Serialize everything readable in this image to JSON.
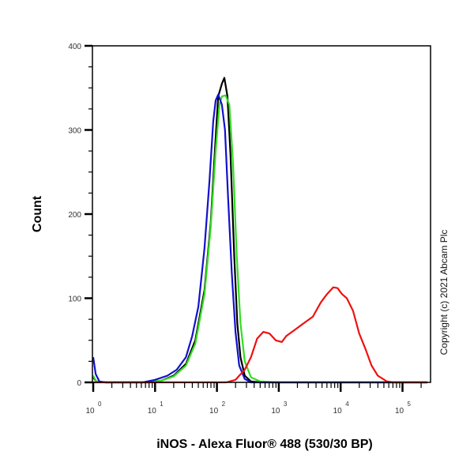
{
  "chart_data": {
    "type": "line",
    "title": "",
    "xlabel": "iNOS - Alexa Fluor® 488 (530/30 BP)",
    "ylabel": "Count",
    "x_scale": "log",
    "xlim_decades": [
      0,
      5.4
    ],
    "ylim": [
      0,
      400
    ],
    "y_ticks": [
      0,
      100,
      200,
      300,
      400
    ],
    "y_minor_step": 25,
    "x_tick_labels": [
      {
        "base": "10",
        "exp": "0",
        "decade": 0
      },
      {
        "base": "10",
        "exp": "1",
        "decade": 1
      },
      {
        "base": "10",
        "exp": "2",
        "decade": 2
      },
      {
        "base": "10",
        "exp": "3",
        "decade": 3
      },
      {
        "base": "10",
        "exp": "4",
        "decade": 4
      },
      {
        "base": "10",
        "exp": "5",
        "decade": 5
      }
    ],
    "grid": false,
    "legend": null,
    "annotation": "Copyright (c) 2021 Abcam Plc",
    "series": [
      {
        "name": "black",
        "color": "#000000",
        "points_decade_count": [
          [
            0.0,
            6
          ],
          [
            0.05,
            1
          ],
          [
            0.2,
            0
          ],
          [
            0.9,
            0
          ],
          [
            1.1,
            2
          ],
          [
            1.3,
            8
          ],
          [
            1.5,
            22
          ],
          [
            1.65,
            50
          ],
          [
            1.8,
            110
          ],
          [
            1.9,
            190
          ],
          [
            1.97,
            280
          ],
          [
            2.02,
            340
          ],
          [
            2.08,
            355
          ],
          [
            2.12,
            362
          ],
          [
            2.17,
            340
          ],
          [
            2.22,
            270
          ],
          [
            2.28,
            150
          ],
          [
            2.33,
            70
          ],
          [
            2.38,
            30
          ],
          [
            2.45,
            8
          ],
          [
            2.55,
            1
          ],
          [
            2.7,
            0
          ],
          [
            5.4,
            0
          ]
        ]
      },
      {
        "name": "green",
        "color": "#33dd22",
        "points_decade_count": [
          [
            0.0,
            8
          ],
          [
            0.05,
            1
          ],
          [
            0.2,
            0
          ],
          [
            0.9,
            0
          ],
          [
            1.1,
            2
          ],
          [
            1.3,
            7
          ],
          [
            1.5,
            20
          ],
          [
            1.65,
            46
          ],
          [
            1.8,
            105
          ],
          [
            1.9,
            185
          ],
          [
            1.98,
            275
          ],
          [
            2.04,
            330
          ],
          [
            2.08,
            340
          ],
          [
            2.14,
            341
          ],
          [
            2.2,
            330
          ],
          [
            2.26,
            260
          ],
          [
            2.32,
            150
          ],
          [
            2.38,
            70
          ],
          [
            2.45,
            25
          ],
          [
            2.55,
            6
          ],
          [
            2.7,
            1
          ],
          [
            3.0,
            0
          ],
          [
            5.4,
            0
          ]
        ]
      },
      {
        "name": "blue",
        "color": "#1111cc",
        "points_decade_count": [
          [
            0.0,
            30
          ],
          [
            0.04,
            10
          ],
          [
            0.1,
            1
          ],
          [
            0.2,
            0
          ],
          [
            0.8,
            0
          ],
          [
            1.0,
            3
          ],
          [
            1.2,
            8
          ],
          [
            1.35,
            15
          ],
          [
            1.5,
            30
          ],
          [
            1.6,
            55
          ],
          [
            1.7,
            90
          ],
          [
            1.8,
            160
          ],
          [
            1.88,
            240
          ],
          [
            1.94,
            310
          ],
          [
            1.98,
            335
          ],
          [
            2.02,
            342
          ],
          [
            2.08,
            330
          ],
          [
            2.13,
            300
          ],
          [
            2.18,
            220
          ],
          [
            2.24,
            130
          ],
          [
            2.3,
            60
          ],
          [
            2.36,
            20
          ],
          [
            2.45,
            4
          ],
          [
            2.55,
            0
          ],
          [
            5.4,
            0
          ]
        ]
      },
      {
        "name": "red",
        "color": "#ee1111",
        "points_decade_count": [
          [
            0.0,
            0
          ],
          [
            2.15,
            0
          ],
          [
            2.3,
            3
          ],
          [
            2.45,
            15
          ],
          [
            2.55,
            30
          ],
          [
            2.65,
            52
          ],
          [
            2.75,
            60
          ],
          [
            2.85,
            58
          ],
          [
            2.95,
            50
          ],
          [
            3.05,
            48
          ],
          [
            3.12,
            55
          ],
          [
            3.25,
            62
          ],
          [
            3.4,
            70
          ],
          [
            3.55,
            78
          ],
          [
            3.68,
            95
          ],
          [
            3.78,
            105
          ],
          [
            3.88,
            113
          ],
          [
            3.95,
            112
          ],
          [
            4.02,
            105
          ],
          [
            4.1,
            100
          ],
          [
            4.2,
            85
          ],
          [
            4.3,
            58
          ],
          [
            4.4,
            40
          ],
          [
            4.5,
            20
          ],
          [
            4.6,
            8
          ],
          [
            4.75,
            1
          ],
          [
            4.85,
            0
          ],
          [
            5.4,
            0
          ]
        ]
      }
    ]
  }
}
